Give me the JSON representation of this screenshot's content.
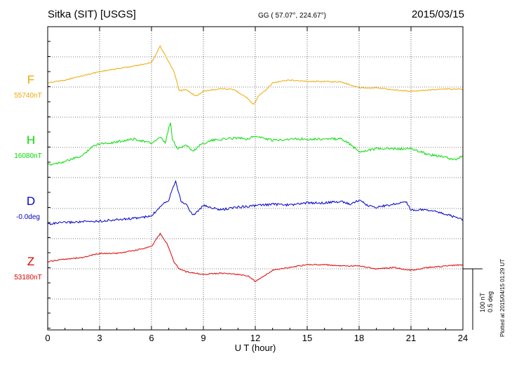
{
  "header": {
    "station": "Sitka (SIT)  [USGS]",
    "coords": "GG ( 57.07°, 224.67°)",
    "date": "2015/03/15"
  },
  "scale_bar": {
    "label_nt": "100 nT",
    "label_deg": "0.5 deg"
  },
  "footer_note": "Plotted at 2015/04/15 01:29 UT",
  "colors": {
    "F": "#f0a800",
    "H": "#00dd00",
    "D": "#0000cc",
    "Z": "#dd0000",
    "grid": "#000000"
  },
  "chart_data": {
    "type": "line",
    "xlabel": "U T (hour)",
    "xlim": [
      0,
      24
    ],
    "xticks": [
      0,
      3,
      6,
      9,
      12,
      15,
      18,
      21,
      24
    ],
    "series": [
      {
        "name": "F",
        "baseline_label": "55740nT",
        "points": [
          [
            0,
            -6
          ],
          [
            1,
            -10
          ],
          [
            2,
            -16
          ],
          [
            3,
            -22
          ],
          [
            4,
            -26
          ],
          [
            5,
            -30
          ],
          [
            6,
            -35
          ],
          [
            6.5,
            -58
          ],
          [
            6.9,
            -40
          ],
          [
            7.3,
            -22
          ],
          [
            7.6,
            5
          ],
          [
            8,
            4
          ],
          [
            8.6,
            13
          ],
          [
            9,
            6
          ],
          [
            10,
            2
          ],
          [
            10.8,
            4
          ],
          [
            11.5,
            15
          ],
          [
            11.9,
            25
          ],
          [
            12.2,
            12
          ],
          [
            12.6,
            5
          ],
          [
            13,
            -6
          ],
          [
            14,
            -10
          ],
          [
            15,
            -8
          ],
          [
            16,
            -8
          ],
          [
            17,
            -7
          ],
          [
            18,
            1
          ],
          [
            19,
            1
          ],
          [
            20,
            4
          ],
          [
            21,
            6
          ],
          [
            22,
            4
          ],
          [
            23,
            3
          ],
          [
            24,
            3
          ]
        ]
      },
      {
        "name": "H",
        "baseline_label": "16080nT",
        "points": [
          [
            0,
            25
          ],
          [
            1,
            20
          ],
          [
            2,
            12
          ],
          [
            2.5,
            0
          ],
          [
            3,
            -6
          ],
          [
            3.5,
            -6
          ],
          [
            4,
            -8
          ],
          [
            5,
            -12
          ],
          [
            6,
            -6
          ],
          [
            6.5,
            -14
          ],
          [
            6.8,
            -6
          ],
          [
            7,
            -28
          ],
          [
            7.1,
            -35
          ],
          [
            7.2,
            -12
          ],
          [
            7.5,
            2
          ],
          [
            8,
            -4
          ],
          [
            8.4,
            6
          ],
          [
            8.8,
            -4
          ],
          [
            9.5,
            -10
          ],
          [
            11,
            -14
          ],
          [
            11.5,
            -12
          ],
          [
            12,
            -16
          ],
          [
            13,
            -10
          ],
          [
            14,
            -12
          ],
          [
            15,
            -12
          ],
          [
            16,
            -12
          ],
          [
            17,
            -12
          ],
          [
            17.5,
            -4
          ],
          [
            18,
            6
          ],
          [
            19,
            2
          ],
          [
            20,
            2
          ],
          [
            21,
            2
          ],
          [
            22,
            10
          ],
          [
            23,
            14
          ],
          [
            23.5,
            18
          ],
          [
            24,
            12
          ]
        ]
      },
      {
        "name": "D",
        "baseline_label": "-0.0deg",
        "points": [
          [
            0,
            22
          ],
          [
            1,
            20
          ],
          [
            2,
            19
          ],
          [
            3,
            18
          ],
          [
            4,
            16
          ],
          [
            5,
            14
          ],
          [
            6,
            11
          ],
          [
            6.6,
            -6
          ],
          [
            7,
            -12
          ],
          [
            7.2,
            -28
          ],
          [
            7.4,
            -40
          ],
          [
            7.7,
            -10
          ],
          [
            8,
            -6
          ],
          [
            8.4,
            10
          ],
          [
            9,
            -4
          ],
          [
            10,
            2
          ],
          [
            11,
            -2
          ],
          [
            12,
            -4
          ],
          [
            13,
            -6
          ],
          [
            14,
            -5
          ],
          [
            15,
            -8
          ],
          [
            16,
            -8
          ],
          [
            17,
            -10
          ],
          [
            17.5,
            -6
          ],
          [
            18,
            -12
          ],
          [
            18.5,
            -4
          ],
          [
            19,
            -2
          ],
          [
            20,
            -6
          ],
          [
            20.7,
            -10
          ],
          [
            21,
            2
          ],
          [
            22,
            2
          ],
          [
            23,
            8
          ],
          [
            24,
            16
          ]
        ]
      },
      {
        "name": "Z",
        "baseline_label": "53180nT",
        "points": [
          [
            0,
            -10
          ],
          [
            1,
            -14
          ],
          [
            2,
            -16
          ],
          [
            3,
            -22
          ],
          [
            4,
            -22
          ],
          [
            5,
            -26
          ],
          [
            6,
            -32
          ],
          [
            6.5,
            -50
          ],
          [
            6.9,
            -36
          ],
          [
            7.3,
            -10
          ],
          [
            7.6,
            0
          ],
          [
            8,
            4
          ],
          [
            9,
            8
          ],
          [
            10,
            6
          ],
          [
            11,
            8
          ],
          [
            11.6,
            10
          ],
          [
            12,
            18
          ],
          [
            12.4,
            12
          ],
          [
            13,
            2
          ],
          [
            14,
            -2
          ],
          [
            15,
            -6
          ],
          [
            16,
            -6
          ],
          [
            17,
            -4
          ],
          [
            18,
            -4
          ],
          [
            19,
            0
          ],
          [
            20,
            -2
          ],
          [
            21,
            2
          ],
          [
            22,
            -2
          ],
          [
            23,
            -4
          ],
          [
            24,
            -6
          ]
        ]
      }
    ]
  }
}
